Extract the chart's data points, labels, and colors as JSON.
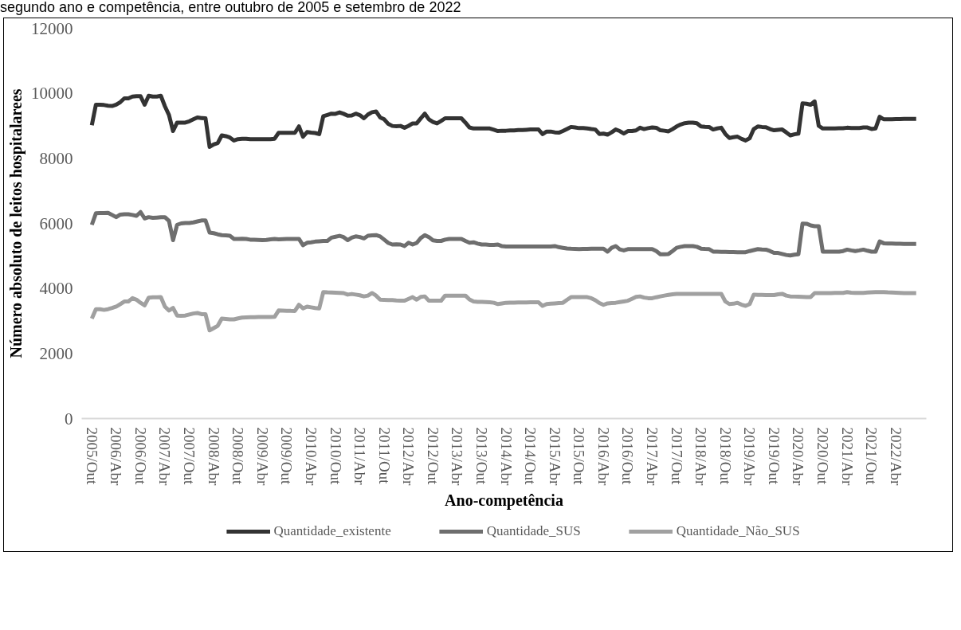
{
  "chart_data": {
    "type": "line",
    "title": "segundo ano e competência, entre outubro de 2005 e setembro de 2022",
    "xlabel": "Ano-competência",
    "ylabel": "Número absoluto de leitos hospitalarees",
    "categories": [
      "2005/Out",
      null,
      null,
      null,
      null,
      null,
      "2006/Abr",
      null,
      null,
      null,
      null,
      null,
      "2006/Out",
      null,
      null,
      null,
      null,
      null,
      "2007/Abr",
      null,
      null,
      null,
      null,
      null,
      "2007/Out",
      null,
      null,
      null,
      null,
      null,
      "2008/Abr",
      null,
      null,
      null,
      null,
      null,
      "2008/Out",
      null,
      null,
      null,
      null,
      null,
      "2009/Abr",
      null,
      null,
      null,
      null,
      null,
      "2009/Out",
      null,
      null,
      null,
      null,
      null,
      "2010/Abr",
      null,
      null,
      null,
      null,
      null,
      "2010/Out",
      null,
      null,
      null,
      null,
      null,
      "2011/Abr",
      null,
      null,
      null,
      null,
      null,
      "2011/Out",
      null,
      null,
      null,
      null,
      null,
      "2012/Abr",
      null,
      null,
      null,
      null,
      null,
      "2012/Out",
      null,
      null,
      null,
      null,
      null,
      "2013/Abr",
      null,
      null,
      null,
      null,
      null,
      "2013/Out",
      null,
      null,
      null,
      null,
      null,
      "2014/Abr",
      null,
      null,
      null,
      null,
      null,
      "2014/Out",
      null,
      null,
      null,
      null,
      null,
      "2015/Abr",
      null,
      null,
      null,
      null,
      null,
      "2015/Out",
      null,
      null,
      null,
      null,
      null,
      "2016/Abr",
      null,
      null,
      null,
      null,
      null,
      "2016/Out",
      null,
      null,
      null,
      null,
      null,
      "2017/Abr",
      null,
      null,
      null,
      null,
      null,
      "2017/Out",
      null,
      null,
      null,
      null,
      null,
      "2018/Abr",
      null,
      null,
      null,
      null,
      null,
      "2018/Out",
      null,
      null,
      null,
      null,
      null,
      "2019/Abr",
      null,
      null,
      null,
      null,
      null,
      "2019/Out",
      null,
      null,
      null,
      null,
      null,
      "2020/Abr",
      null,
      null,
      null,
      null,
      null,
      "2020/Out",
      null,
      null,
      null,
      null,
      null,
      "2021/Abr",
      null,
      null,
      null,
      null,
      null,
      "2021/Out",
      null,
      null,
      null,
      null,
      null,
      "2022/Abr",
      null,
      null,
      null,
      null,
      null
    ],
    "series": [
      {
        "name": "Quantidade_existente",
        "color": "#333333",
        "values": [
          9021,
          9650,
          9650,
          9640,
          9620,
          9610,
          9650,
          9728,
          9846,
          9846,
          9900,
          9910,
          9910,
          9650,
          9925,
          9900,
          9900,
          9925,
          9600,
          9335,
          8840,
          9100,
          9100,
          9100,
          9140,
          9200,
          9257,
          9240,
          9233,
          8353,
          8430,
          8471,
          8707,
          8683,
          8640,
          8549,
          8590,
          8600,
          8604,
          8590,
          8590,
          8590,
          8590,
          8590,
          8590,
          8604,
          8785,
          8785,
          8785,
          8785,
          8785,
          8982,
          8667,
          8809,
          8790,
          8780,
          8746,
          9296,
          9335,
          9375,
          9370,
          9414,
          9370,
          9312,
          9320,
          9375,
          9330,
          9233,
          9350,
          9420,
          9440,
          9260,
          9200,
          9060,
          8997,
          8990,
          8997,
          8942,
          9000,
          9076,
          9076,
          9230,
          9375,
          9200,
          9120,
          9076,
          9150,
          9233,
          9233,
          9233,
          9233,
          9233,
          9100,
          8950,
          8919,
          8919,
          8919,
          8919,
          8919,
          8880,
          8840,
          8850,
          8850,
          8860,
          8860,
          8870,
          8870,
          8880,
          8887,
          8887,
          8887,
          8746,
          8825,
          8825,
          8800,
          8790,
          8840,
          8900,
          8966,
          8950,
          8930,
          8930,
          8919,
          8900,
          8887,
          8750,
          8762,
          8730,
          8800,
          8887,
          8840,
          8762,
          8840,
          8840,
          8860,
          8942,
          8900,
          8930,
          8950,
          8940,
          8864,
          8850,
          8830,
          8900,
          8980,
          9040,
          9080,
          9100,
          9100,
          9080,
          8982,
          8970,
          8966,
          8887,
          8920,
          8942,
          8750,
          8628,
          8650,
          8667,
          8600,
          8549,
          8620,
          8900,
          8982,
          8966,
          8960,
          8900,
          8864,
          8880,
          8887,
          8800,
          8707,
          8740,
          8760,
          9689,
          9680,
          9650,
          9752,
          9000,
          8919,
          8919,
          8919,
          8922,
          8925,
          8925,
          8942,
          8935,
          8935,
          8935,
          8950,
          8950,
          8903,
          8920,
          9280,
          9202,
          9202,
          9205,
          9208,
          9210,
          9212,
          9215,
          9217,
          9217
        ]
      },
      {
        "name": "Quantidade_SUS",
        "color": "#6e6e6e",
        "values": [
          5957,
          6310,
          6320,
          6320,
          6326,
          6260,
          6192,
          6271,
          6280,
          6280,
          6260,
          6232,
          6349,
          6153,
          6192,
          6170,
          6180,
          6192,
          6192,
          6075,
          5485,
          5957,
          6000,
          6010,
          6012,
          6030,
          6060,
          6090,
          6090,
          5720,
          5700,
          5665,
          5640,
          5630,
          5618,
          5524,
          5524,
          5530,
          5524,
          5500,
          5495,
          5490,
          5485,
          5490,
          5510,
          5524,
          5510,
          5515,
          5520,
          5524,
          5524,
          5524,
          5328,
          5406,
          5420,
          5440,
          5450,
          5461,
          5461,
          5563,
          5590,
          5618,
          5580,
          5485,
          5560,
          5602,
          5580,
          5540,
          5620,
          5630,
          5641,
          5600,
          5500,
          5400,
          5351,
          5360,
          5351,
          5304,
          5406,
          5351,
          5400,
          5550,
          5641,
          5580,
          5480,
          5461,
          5461,
          5500,
          5524,
          5524,
          5524,
          5524,
          5460,
          5406,
          5420,
          5380,
          5351,
          5351,
          5340,
          5340,
          5351,
          5300,
          5288,
          5290,
          5290,
          5290,
          5290,
          5290,
          5290,
          5290,
          5290,
          5290,
          5290,
          5290,
          5304,
          5270,
          5249,
          5230,
          5220,
          5215,
          5210,
          5215,
          5215,
          5220,
          5220,
          5225,
          5225,
          5131,
          5250,
          5304,
          5200,
          5170,
          5210,
          5210,
          5210,
          5210,
          5210,
          5210,
          5210,
          5150,
          5053,
          5053,
          5060,
          5150,
          5250,
          5280,
          5300,
          5304,
          5304,
          5280,
          5225,
          5215,
          5210,
          5131,
          5130,
          5125,
          5125,
          5120,
          5120,
          5115,
          5115,
          5115,
          5150,
          5180,
          5210,
          5200,
          5194,
          5150,
          5092,
          5092,
          5060,
          5030,
          5013,
          5040,
          5053,
          5995,
          5990,
          5940,
          5916,
          5916,
          5131,
          5131,
          5131,
          5131,
          5131,
          5150,
          5194,
          5170,
          5150,
          5170,
          5194,
          5160,
          5131,
          5131,
          5445,
          5390,
          5380,
          5380,
          5375,
          5375,
          5370,
          5370,
          5367,
          5367
        ]
      },
      {
        "name": "Quantidade_Não_SUS",
        "color": "#a0a0a0",
        "values": [
          3072,
          3363,
          3360,
          3340,
          3363,
          3400,
          3441,
          3520,
          3599,
          3600,
          3701,
          3654,
          3560,
          3481,
          3717,
          3730,
          3730,
          3733,
          3441,
          3323,
          3402,
          3167,
          3160,
          3167,
          3200,
          3230,
          3245,
          3210,
          3206,
          2711,
          2780,
          2852,
          3072,
          3060,
          3049,
          3049,
          3080,
          3104,
          3110,
          3115,
          3115,
          3120,
          3120,
          3125,
          3125,
          3127,
          3323,
          3320,
          3315,
          3310,
          3308,
          3496,
          3386,
          3441,
          3420,
          3400,
          3386,
          3889,
          3880,
          3874,
          3870,
          3865,
          3858,
          3811,
          3830,
          3811,
          3790,
          3756,
          3780,
          3858,
          3780,
          3654,
          3650,
          3645,
          3640,
          3630,
          3625,
          3622,
          3680,
          3733,
          3654,
          3740,
          3756,
          3622,
          3622,
          3622,
          3622,
          3780,
          3780,
          3780,
          3780,
          3780,
          3780,
          3660,
          3599,
          3590,
          3585,
          3580,
          3575,
          3560,
          3520,
          3540,
          3560,
          3565,
          3565,
          3570,
          3570,
          3570,
          3575,
          3575,
          3575,
          3465,
          3520,
          3530,
          3540,
          3550,
          3560,
          3650,
          3733,
          3733,
          3733,
          3733,
          3733,
          3700,
          3638,
          3550,
          3496,
          3540,
          3550,
          3560,
          3580,
          3600,
          3622,
          3680,
          3740,
          3756,
          3720,
          3701,
          3700,
          3730,
          3756,
          3780,
          3800,
          3820,
          3835,
          3835,
          3835,
          3835,
          3835,
          3835,
          3835,
          3835,
          3835,
          3835,
          3835,
          3835,
          3600,
          3520,
          3530,
          3560,
          3500,
          3465,
          3520,
          3811,
          3800,
          3800,
          3795,
          3795,
          3795,
          3820,
          3835,
          3780,
          3756,
          3750,
          3745,
          3740,
          3735,
          3733,
          3858,
          3858,
          3860,
          3860,
          3860,
          3865,
          3865,
          3865,
          3889,
          3870,
          3865,
          3865,
          3865,
          3875,
          3880,
          3885,
          3889,
          3889,
          3880,
          3875,
          3870,
          3865,
          3860,
          3860,
          3858,
          3858
        ]
      }
    ],
    "ylim": [
      0,
      12000
    ],
    "yticks": [
      0,
      2000,
      4000,
      6000,
      8000,
      10000,
      12000
    ],
    "legend": "bottom"
  }
}
